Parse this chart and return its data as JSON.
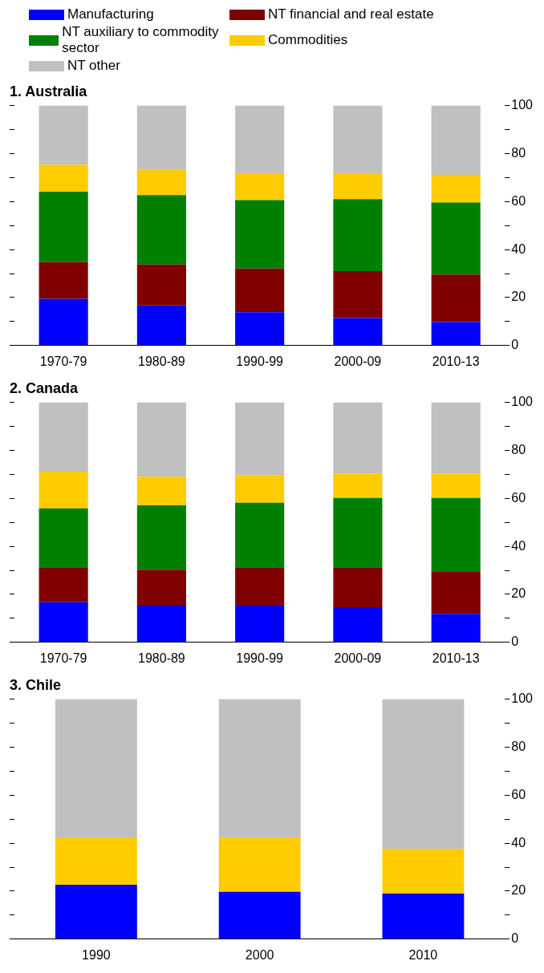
{
  "chart_data": [
    {
      "type": "bar",
      "title": "1. Australia",
      "stacked": true,
      "legend": "top left",
      "categories": [
        "1970-79",
        "1980-89",
        "1990-99",
        "2000-09",
        "2010-13"
      ],
      "ylim": [
        0,
        100
      ],
      "yticks": [
        0,
        {
          "value": 10,
          "label": null
        },
        20,
        {
          "value": 30,
          "label": null
        },
        40,
        {
          "value": 50,
          "label": null
        },
        60,
        {
          "value": 70,
          "label": null
        },
        80,
        {
          "value": 90,
          "label": null
        },
        100
      ],
      "series": [
        {
          "name": "Manufacturing",
          "color": "#0000ff",
          "values": [
            19.5,
            16.7,
            13.9,
            11.5,
            9.8
          ]
        },
        {
          "name": "NT financial and real estate",
          "color": "#800000",
          "values": [
            15.3,
            17.1,
            18.2,
            19.5,
            19.8
          ]
        },
        {
          "name": "NT auxiliary to commodity sector",
          "color": "#008000",
          "values": [
            29.3,
            28.9,
            28.5,
            30,
            30
          ]
        },
        {
          "name": "Commodities",
          "color": "#ffcc00",
          "values": [
            11.2,
            10.5,
            11.2,
            10.8,
            11.5
          ]
        },
        {
          "name": "NT other",
          "color": "#c0c0c0",
          "values": [
            24.7,
            26.8,
            28.2,
            28.2,
            28.9
          ]
        }
      ]
    },
    {
      "type": "bar",
      "title": "2. Canada",
      "stacked": true,
      "categories": [
        "1970-79",
        "1980-89",
        "1990-99",
        "2000-09",
        "2010-13"
      ],
      "ylim": [
        0,
        100
      ],
      "yticks": [
        0,
        {
          "value": 10,
          "label": null
        },
        20,
        {
          "value": 30,
          "label": null
        },
        40,
        {
          "value": 50,
          "label": null
        },
        60,
        {
          "value": 70,
          "label": null
        },
        80,
        {
          "value": 90,
          "label": null
        },
        100
      ],
      "series": [
        {
          "color": "#0000ff",
          "values": [
            16.7,
            15.3,
            15.3,
            14.6,
            11.9
          ]
        },
        {
          "color": "#800000",
          "values": [
            14.3,
            15,
            16,
            16.7,
            17.7
          ]
        },
        {
          "color": "#008000",
          "values": [
            24.8,
            26.8,
            26.9,
            28.9,
            30.6
          ]
        },
        {
          "color": "#ffcc00",
          "values": [
            15.3,
            11.9,
            11.5,
            10.2,
            10.2
          ]
        },
        {
          "color": "#c0c0c0",
          "values": [
            28.9,
            31,
            30.3,
            29.6,
            29.6
          ]
        }
      ]
    },
    {
      "type": "bar",
      "title": "3. Chile",
      "stacked": true,
      "categories": [
        "1990",
        "2000",
        "2010"
      ],
      "ylim": [
        0,
        100
      ],
      "yticks": [
        0,
        {
          "value": 10,
          "label": null
        },
        20,
        {
          "value": 30,
          "label": null
        },
        40,
        {
          "value": 50,
          "label": null
        },
        60,
        {
          "value": 70,
          "label": null
        },
        80,
        {
          "value": 90,
          "label": null
        },
        100
      ],
      "series": [
        {
          "color": "#0000ff",
          "values": [
            22.7,
            19.7,
            19
          ]
        },
        {
          "color": "#ffcc00",
          "values": [
            19.7,
            22.7,
            18.6
          ]
        },
        {
          "color": "#c0c0c0",
          "values": [
            57.6,
            57.6,
            62.4
          ]
        }
      ]
    }
  ]
}
